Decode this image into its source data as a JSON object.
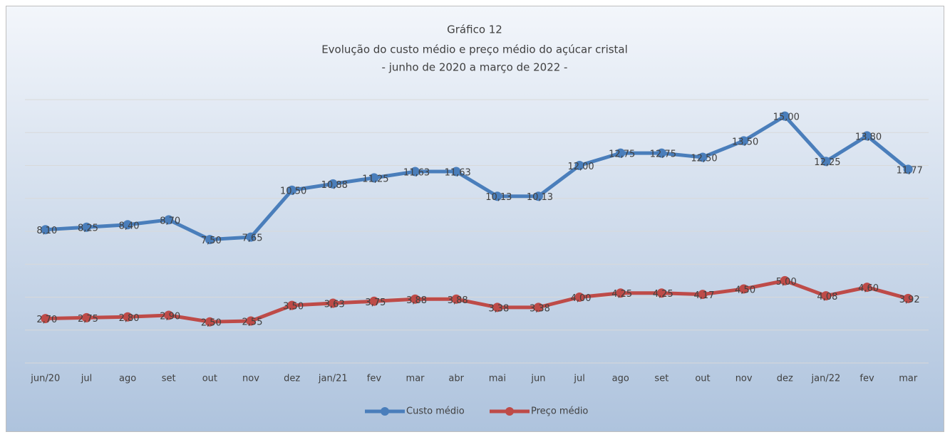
{
  "chart_data": {
    "type": "line",
    "title": "Gráfico 12",
    "subtitle": [
      "Evolução do custo médio e preço médio do açúcar cristal",
      "- junho de 2020 a março de 2022 -"
    ],
    "categories": [
      "jun/20",
      "jul",
      "ago",
      "set",
      "out",
      "nov",
      "dez",
      "jan/21",
      "fev",
      "mar",
      "abr",
      "mai",
      "jun",
      "jul",
      "ago",
      "set",
      "out",
      "nov",
      "dez",
      "jan/22",
      "fev",
      "mar"
    ],
    "series": [
      {
        "name": "Custo médio",
        "color": "#4a7ebb",
        "values": [
          8.1,
          8.25,
          8.4,
          8.7,
          7.5,
          7.65,
          10.5,
          10.88,
          11.25,
          11.63,
          11.63,
          10.13,
          10.13,
          12.0,
          12.75,
          12.75,
          12.5,
          13.5,
          15.0,
          12.25,
          13.8,
          11.77
        ],
        "value_labels": [
          "8,10",
          "8,25",
          "8,40",
          "8,70",
          "7,50",
          "7,65",
          "10,50",
          "10,88",
          "11,25",
          "11,63",
          "11,63",
          "10,13",
          "10,13",
          "12,00",
          "12,75",
          "12,75",
          "12,50",
          "13,50",
          "15,00",
          "12,25",
          "13,80",
          "11,77"
        ]
      },
      {
        "name": "Preço médio",
        "color": "#be4b48",
        "values": [
          2.7,
          2.75,
          2.8,
          2.9,
          2.5,
          2.55,
          3.5,
          3.63,
          3.75,
          3.88,
          3.88,
          3.38,
          3.38,
          4.0,
          4.25,
          4.25,
          4.17,
          4.5,
          5.0,
          4.08,
          4.6,
          3.92
        ],
        "value_labels": [
          "2,70",
          "2,75",
          "2,80",
          "2,90",
          "2,50",
          "2,55",
          "3,50",
          "3,63",
          "3,75",
          "3,88",
          "3,88",
          "3,38",
          "3,38",
          "4,00",
          "4,25",
          "4,25",
          "4,17",
          "4,50",
          "5,00",
          "4,08",
          "4,60",
          "3,92"
        ]
      }
    ],
    "ylim": [
      0,
      16
    ],
    "yticks": [
      0,
      2,
      4,
      6,
      8,
      10,
      12,
      14,
      16
    ],
    "grid": true,
    "legend": "bottom"
  }
}
